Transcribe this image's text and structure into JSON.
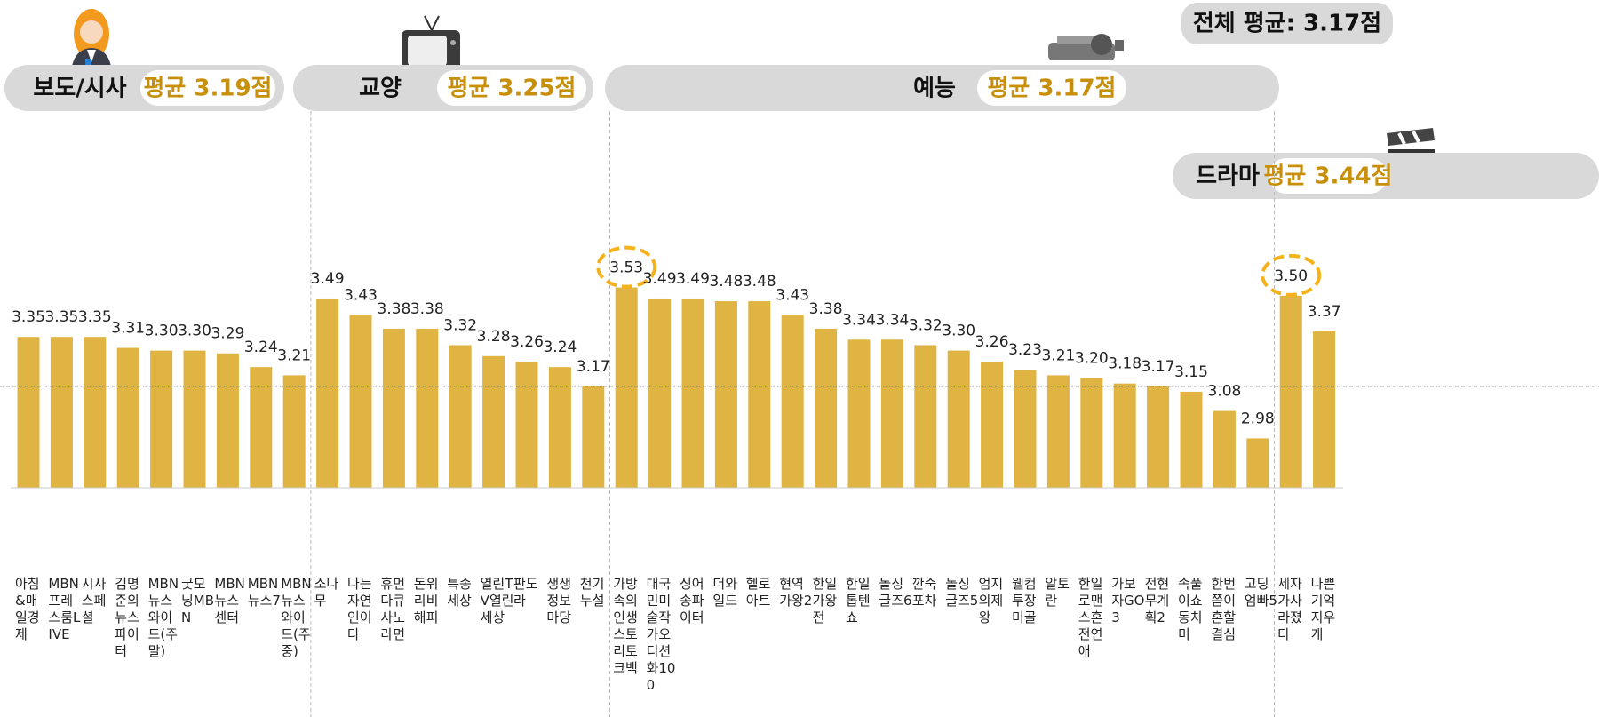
{
  "chart_data": {
    "type": "bar",
    "color": "#e0b443",
    "ylim": [
      2.8,
      3.6
    ],
    "overall_average": {
      "value": 3.17,
      "label": "전체 평균: 3.17점"
    },
    "groups": [
      {
        "name": "보도/시사",
        "average": {
          "value": 3.19,
          "label": "평균 3.19점"
        },
        "categories": [
          "아침&매일경제",
          "MBN프레스룸LIVE",
          "시사스페셜",
          "김명준의뉴스파이터",
          "MBN뉴스와이드(주말)",
          "굿모닝MBN",
          "MBN뉴스센터",
          "MBN뉴스7",
          "MBN뉴스와이드(주중)"
        ],
        "values": [
          3.35,
          3.35,
          3.35,
          3.31,
          3.3,
          3.3,
          3.29,
          3.24,
          3.21
        ],
        "value_labels": [
          "3.35",
          "3.35",
          "3.35",
          "3.31",
          "3.30",
          "3.30",
          "3.29",
          "3.24",
          "3.21"
        ]
      },
      {
        "name": "교양",
        "average": {
          "value": 3.25,
          "label": "평균 3.25점"
        },
        "categories": [
          "소나무",
          "나는자연인이다",
          "휴먼다큐사노라면",
          "돈워리비해피",
          "특종세상",
          "열린TV열린세상",
          "판도라",
          "생생정보마당",
          "천기누설"
        ],
        "values": [
          3.49,
          3.43,
          3.38,
          3.38,
          3.32,
          3.28,
          3.26,
          3.24,
          3.17
        ],
        "value_labels": [
          "3.49",
          "3.43",
          "3.38",
          "3.38",
          "3.32",
          "3.28",
          "3.26",
          "3.24",
          "3.17"
        ]
      },
      {
        "name": "예능",
        "average": {
          "value": 3.17,
          "label": "평균 3.17점"
        },
        "highlight_max": true,
        "categories": [
          "가방속의인생스토리토크백",
          "대국민미술작가오디션화100",
          "싱어송파이터",
          "더와일드",
          "헬로아트",
          "현역가왕2",
          "한일가왕전",
          "한일톱텐쇼",
          "돌싱글즈6",
          "깐죽포차",
          "돌싱글즈5",
          "엄지의제왕",
          "웰컴투장미골",
          "알토란",
          "한일로맨스혼전연애",
          "가보자GO3",
          "전현무계획2",
          "속풀이쇼동치미",
          "한번쯤이혼할결심",
          "고딩엄빠5"
        ],
        "values": [
          3.53,
          3.49,
          3.49,
          3.48,
          3.48,
          3.43,
          3.38,
          3.34,
          3.34,
          3.32,
          3.3,
          3.26,
          3.23,
          3.21,
          3.2,
          3.18,
          3.17,
          3.15,
          3.08,
          2.98
        ],
        "value_labels": [
          "3.53",
          "3.49",
          "3.49",
          "3.48",
          "3.48",
          "3.43",
          "3.38",
          "3.34",
          "3.34",
          "3.32",
          "3.30",
          "3.26",
          "3.23",
          "3.21",
          "3.20",
          "3.18",
          "3.17",
          "3.15",
          "3.08",
          "2.98"
        ]
      },
      {
        "name": "드라마",
        "average": {
          "value": 3.44,
          "label": "평균 3.44점"
        },
        "highlight_max": true,
        "categories": [
          "세자가사라졌다",
          "나쁜기억지우개"
        ],
        "values": [
          3.5,
          3.37
        ],
        "value_labels": [
          "3.50",
          "3.37"
        ]
      }
    ]
  }
}
